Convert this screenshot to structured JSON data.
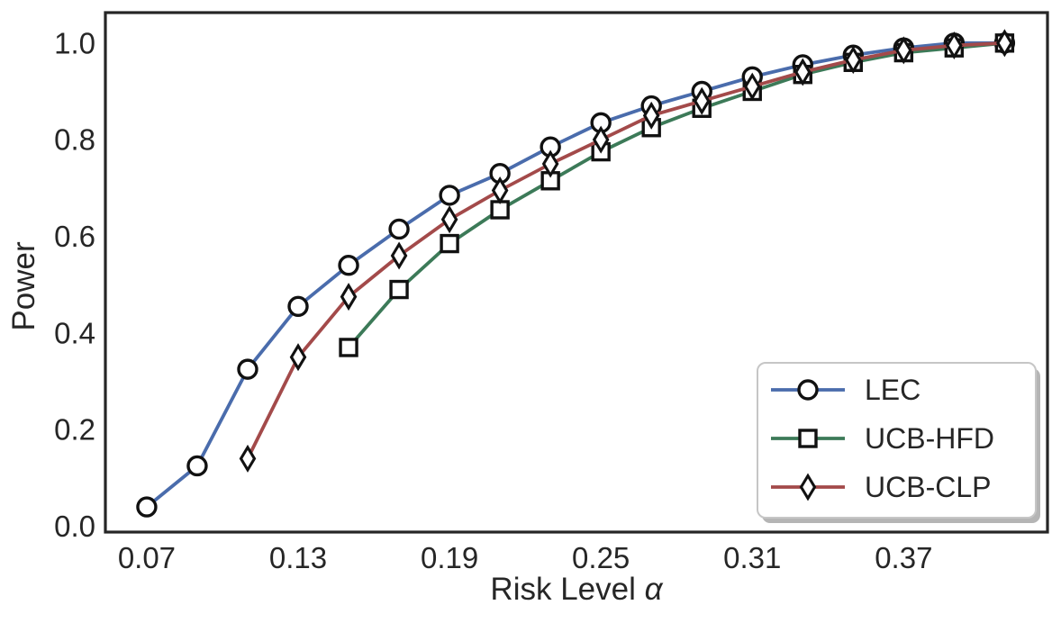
{
  "chart_data": {
    "type": "line",
    "title": "",
    "xlabel": "Risk Level α",
    "xlabel_prefix": "Risk Level ",
    "xlabel_symbol": "α",
    "ylabel": "Power",
    "grid": false,
    "legend_position": "lower right",
    "xlim": [
      0.0536,
      0.427
    ],
    "ylim": [
      -0.012,
      1.063
    ],
    "x_ticks": [
      {
        "v": 0.07,
        "label": "0.07"
      },
      {
        "v": 0.13,
        "label": "0.13"
      },
      {
        "v": 0.19,
        "label": "0.19"
      },
      {
        "v": 0.25,
        "label": "0.25"
      },
      {
        "v": 0.31,
        "label": "0.31"
      },
      {
        "v": 0.37,
        "label": "0.37"
      }
    ],
    "y_ticks": [
      {
        "v": 0.0,
        "label": "0.0"
      },
      {
        "v": 0.2,
        "label": "0.2"
      },
      {
        "v": 0.4,
        "label": "0.4"
      },
      {
        "v": 0.6,
        "label": "0.6"
      },
      {
        "v": 0.8,
        "label": "0.8"
      },
      {
        "v": 1.0,
        "label": "1.0"
      }
    ],
    "series": [
      {
        "name": "LEC",
        "color": "#4A6CAC",
        "marker": "circle",
        "x": [
          0.07,
          0.09,
          0.11,
          0.13,
          0.15,
          0.17,
          0.19,
          0.21,
          0.23,
          0.25,
          0.27,
          0.29,
          0.31,
          0.33,
          0.35,
          0.37,
          0.39,
          0.41
        ],
        "y": [
          0.04,
          0.125,
          0.325,
          0.455,
          0.54,
          0.615,
          0.685,
          0.73,
          0.785,
          0.835,
          0.87,
          0.9,
          0.93,
          0.955,
          0.975,
          0.99,
          1.0,
          1.0
        ]
      },
      {
        "name": "UCB-HFD",
        "color": "#3C7A58",
        "marker": "square",
        "x": [
          0.15,
          0.17,
          0.19,
          0.21,
          0.23,
          0.25,
          0.27,
          0.29,
          0.31,
          0.33,
          0.35,
          0.37,
          0.39,
          0.41
        ],
        "y": [
          0.37,
          0.49,
          0.585,
          0.655,
          0.715,
          0.775,
          0.825,
          0.865,
          0.9,
          0.935,
          0.96,
          0.98,
          0.99,
          1.0
        ]
      },
      {
        "name": "UCB-CLP",
        "color": "#A34A4A",
        "marker": "diamond",
        "x": [
          0.11,
          0.13,
          0.15,
          0.17,
          0.19,
          0.21,
          0.23,
          0.25,
          0.27,
          0.29,
          0.31,
          0.33,
          0.35,
          0.37,
          0.39,
          0.41
        ],
        "y": [
          0.14,
          0.35,
          0.475,
          0.56,
          0.635,
          0.695,
          0.75,
          0.8,
          0.85,
          0.88,
          0.91,
          0.94,
          0.965,
          0.985,
          0.995,
          1.0
        ]
      }
    ],
    "legend_entries": [
      "LEC",
      "UCB-HFD",
      "UCB-CLP"
    ]
  },
  "style_colors": {
    "text": "#262626",
    "spine": "#262626",
    "marker_edge": "#111111",
    "marker_face": "#ffffff",
    "legend_border": "#c6c6c6",
    "legend_shadow": "#b5b5b5",
    "background": "#ffffff"
  }
}
